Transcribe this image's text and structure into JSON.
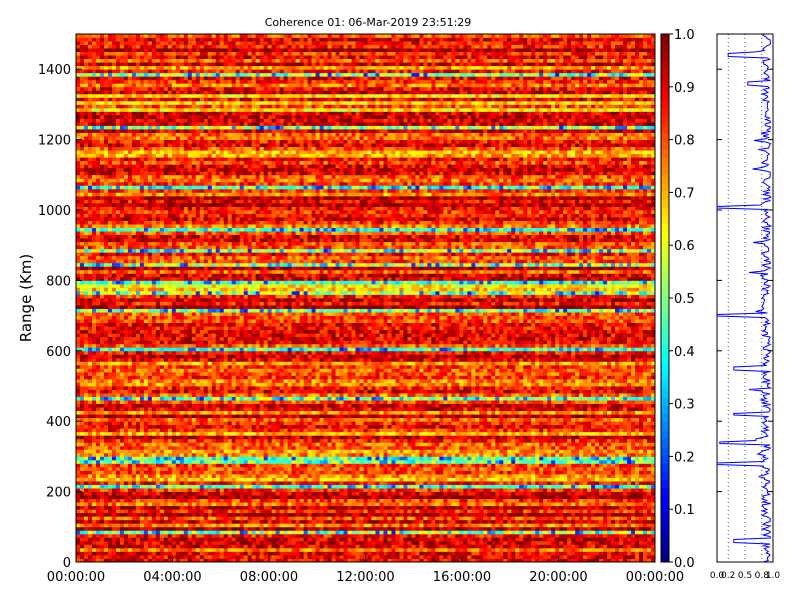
{
  "chart_data": [
    {
      "type": "heatmap",
      "title": "Coherence 01: 06-Mar-2019 23:51:29",
      "ylabel": "Range (Km)",
      "xlabel": "",
      "x_tick_labels": [
        "00:00:00",
        "04:00:00",
        "08:00:00",
        "12:00:00",
        "16:00:00",
        "20:00:00",
        "00:00:00"
      ],
      "y_ticks": [
        0,
        200,
        400,
        600,
        800,
        1000,
        1200,
        1400
      ],
      "ylim": [
        0,
        1500
      ],
      "colorbar": {
        "range": [
          0.0,
          1.0
        ],
        "ticks": [
          "0.0",
          "0.1",
          "0.2",
          "0.3",
          "0.4",
          "0.5",
          "0.6",
          "0.7",
          "0.8",
          "0.9",
          "1.0"
        ],
        "colormap": "jet"
      },
      "low_coherence_bands_km": [
        285,
        1060,
        1235,
        845,
        290,
        605,
        795,
        760,
        1385,
        880,
        940,
        210,
        80,
        465,
        710
      ],
      "dominant_range": [
        0.7,
        1.0
      ]
    },
    {
      "type": "line",
      "x_tick_labels": [
        "0.0",
        "0.2",
        "0.5",
        "0.8",
        "1.0"
      ],
      "xlim": [
        0.0,
        1.0
      ],
      "ylim": [
        0,
        1500
      ],
      "profile_points": [
        {
          "range": 1480,
          "value": 0.95
        },
        {
          "range": 1440,
          "value": 0.2
        },
        {
          "range": 1400,
          "value": 0.9
        },
        {
          "range": 1360,
          "value": 0.55
        },
        {
          "range": 1300,
          "value": 0.9
        },
        {
          "range": 1250,
          "value": 0.95
        },
        {
          "range": 1200,
          "value": 0.85
        },
        {
          "range": 1150,
          "value": 0.9
        },
        {
          "range": 1100,
          "value": 0.95
        },
        {
          "range": 1010,
          "value": 0.0
        },
        {
          "range": 960,
          "value": 0.9
        },
        {
          "range": 900,
          "value": 0.85
        },
        {
          "range": 850,
          "value": 0.95
        },
        {
          "range": 800,
          "value": 0.9
        },
        {
          "range": 700,
          "value": 0.0
        },
        {
          "range": 650,
          "value": 0.9
        },
        {
          "range": 600,
          "value": 0.95
        },
        {
          "range": 550,
          "value": 0.3
        },
        {
          "range": 500,
          "value": 0.9
        },
        {
          "range": 420,
          "value": 0.3
        },
        {
          "range": 340,
          "value": 0.05
        },
        {
          "range": 280,
          "value": 0.0
        },
        {
          "range": 240,
          "value": 0.85
        },
        {
          "range": 200,
          "value": 0.9
        },
        {
          "range": 120,
          "value": 0.95
        },
        {
          "range": 60,
          "value": 0.3
        },
        {
          "range": 10,
          "value": 0.9
        }
      ]
    }
  ]
}
